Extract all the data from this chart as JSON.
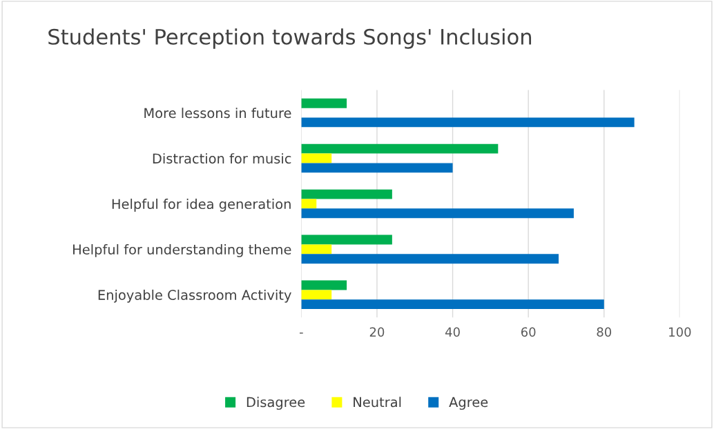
{
  "chart_data": {
    "type": "bar",
    "orientation": "horizontal",
    "title": "Students' Perception towards Songs' Inclusion",
    "categories": [
      "More lessons in future",
      "Distraction for music",
      "Helpful for idea generation",
      "Helpful for understanding theme",
      "Enjoyable Classroom Activity"
    ],
    "series": [
      {
        "name": "Disagree",
        "color": "#00b050",
        "values": [
          12,
          52,
          24,
          24,
          12
        ]
      },
      {
        "name": "Neutral",
        "color": "#ffff00",
        "values": [
          0,
          8,
          4,
          8,
          8
        ]
      },
      {
        "name": "Agree",
        "color": "#0070c0",
        "values": [
          88,
          40,
          72,
          68,
          80
        ]
      }
    ],
    "xlim": [
      0,
      100
    ],
    "xticks": [
      {
        "value": 0,
        "label": "-"
      },
      20,
      40,
      60,
      80,
      100
    ],
    "grid": "x",
    "legend": "bottom"
  }
}
